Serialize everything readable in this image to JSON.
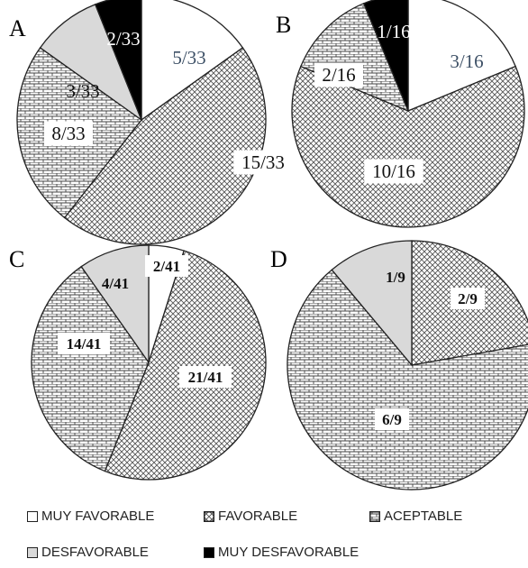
{
  "colors": {
    "muy_favorable": "#ffffff",
    "favorable_pattern": "cross-hatch",
    "aceptable_pattern": "brick",
    "desfavorable": "#d9d9d9",
    "muy_desfavorable": "#000000"
  },
  "legend": [
    {
      "key": "muy_favorable",
      "label": "MUY FAVORABLE"
    },
    {
      "key": "favorable",
      "label": "FAVORABLE"
    },
    {
      "key": "aceptable",
      "label": "ACEPTABLE"
    },
    {
      "key": "desfavorable",
      "label": "DESFAVORABLE"
    },
    {
      "key": "muy_desfavorable",
      "label": "MUY DESFAVORABLE"
    }
  ],
  "chart_data": [
    {
      "type": "pie",
      "panel": "A",
      "legend_position": "bottom",
      "slices": [
        {
          "category": "muy_favorable",
          "value": 5,
          "label": "5/33"
        },
        {
          "category": "favorable",
          "value": 15,
          "label": "15/33"
        },
        {
          "category": "aceptable",
          "value": 8,
          "label": "8/33"
        },
        {
          "category": "desfavorable",
          "value": 3,
          "label": "3/33"
        },
        {
          "category": "muy_desfavorable",
          "value": 2,
          "label": "2/33"
        }
      ]
    },
    {
      "type": "pie",
      "panel": "B",
      "legend_position": "bottom",
      "slices": [
        {
          "category": "muy_favorable",
          "value": 3,
          "label": "3/16"
        },
        {
          "category": "favorable",
          "value": 10,
          "label": "10/16"
        },
        {
          "category": "aceptable",
          "value": 2,
          "label": "2/16"
        },
        {
          "category": "muy_desfavorable",
          "value": 1,
          "label": "1/16"
        }
      ]
    },
    {
      "type": "pie",
      "panel": "C",
      "legend_position": "bottom",
      "slices": [
        {
          "category": "muy_favorable",
          "value": 2,
          "label": "2/41"
        },
        {
          "category": "favorable",
          "value": 21,
          "label": "21/41"
        },
        {
          "category": "aceptable",
          "value": 14,
          "label": "14/41"
        },
        {
          "category": "desfavorable",
          "value": 4,
          "label": "4/41"
        }
      ]
    },
    {
      "type": "pie",
      "panel": "D",
      "legend_position": "bottom",
      "slices": [
        {
          "category": "favorable",
          "value": 2,
          "label": "2/9"
        },
        {
          "category": "aceptable",
          "value": 6,
          "label": "6/9"
        },
        {
          "category": "desfavorable",
          "value": 1,
          "label": "1/9"
        }
      ]
    }
  ]
}
